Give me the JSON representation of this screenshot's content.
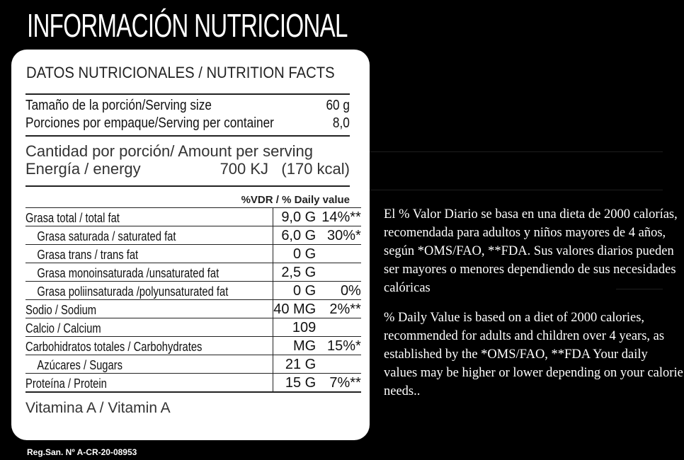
{
  "title": "INFORMACIÓN NUTRICIONAL",
  "card": {
    "heading": "DATOS NUTRICIONALES / NUTRITION FACTS",
    "serving_size_label": "Tamaño de la porción/Serving size",
    "serving_size_value": "60 g",
    "servings_label": "Porciones por empaque/Serving per container",
    "servings_value": "8,0",
    "amount_label": "Cantidad por porción/ Amount per serving",
    "energy_label": "Energía / energy",
    "energy_value": "700 KJ   (170 kcal)",
    "dv_header": "%VDR / % Daily value",
    "rows": [
      {
        "name": "Grasa total / total fat",
        "value": "9,0 G",
        "pct": "14%**"
      },
      {
        "name": "Grasa saturada / saturated fat",
        "value": "6,0 G",
        "pct": "30%*"
      },
      {
        "name": "Grasa trans / trans fat",
        "value": "0 G",
        "pct": ""
      },
      {
        "name": "Grasa monoinsaturada /unsaturated fat",
        "value": "2,5 G",
        "pct": ""
      },
      {
        "name": "Grasa poliinsaturada /polyunsaturated fat",
        "value": "0 G",
        "pct": "0%"
      },
      {
        "name": "Sodio / Sodium",
        "value": "40 MG",
        "pct": "2%**"
      },
      {
        "name": "Calcio / Calcium",
        "value": "109",
        "pct": ""
      },
      {
        "name": "Carbohidratos totales / Carbohydrates",
        "value": "MG",
        "pct": "15%*"
      },
      {
        "name": "Azúcares / Sugars",
        "value": "21 G",
        "pct": ""
      },
      {
        "name": "Proteína / Protein",
        "value": "15 G",
        "pct": "7%**"
      }
    ],
    "vitamin": "Vitamina A / Vitamin A"
  },
  "reg": "Reg.San. Nº A-CR-20-08953",
  "note_es": "El % Valor Diario se basa en una dieta de 2000 calorías, recomendada para adultos y niños mayores de 4 años, según *OMS/FAO, **FDA. Sus valores diarios pueden ser mayores o menores dependiendo de sus necesidades calóricas",
  "note_en": "% Daily Value is based on a diet of 2000 calories, recommended for adults and children over 4 years, as established by the *OMS/FAO, **FDA Your daily values may be higher or lower depending on your calorie needs.."
}
